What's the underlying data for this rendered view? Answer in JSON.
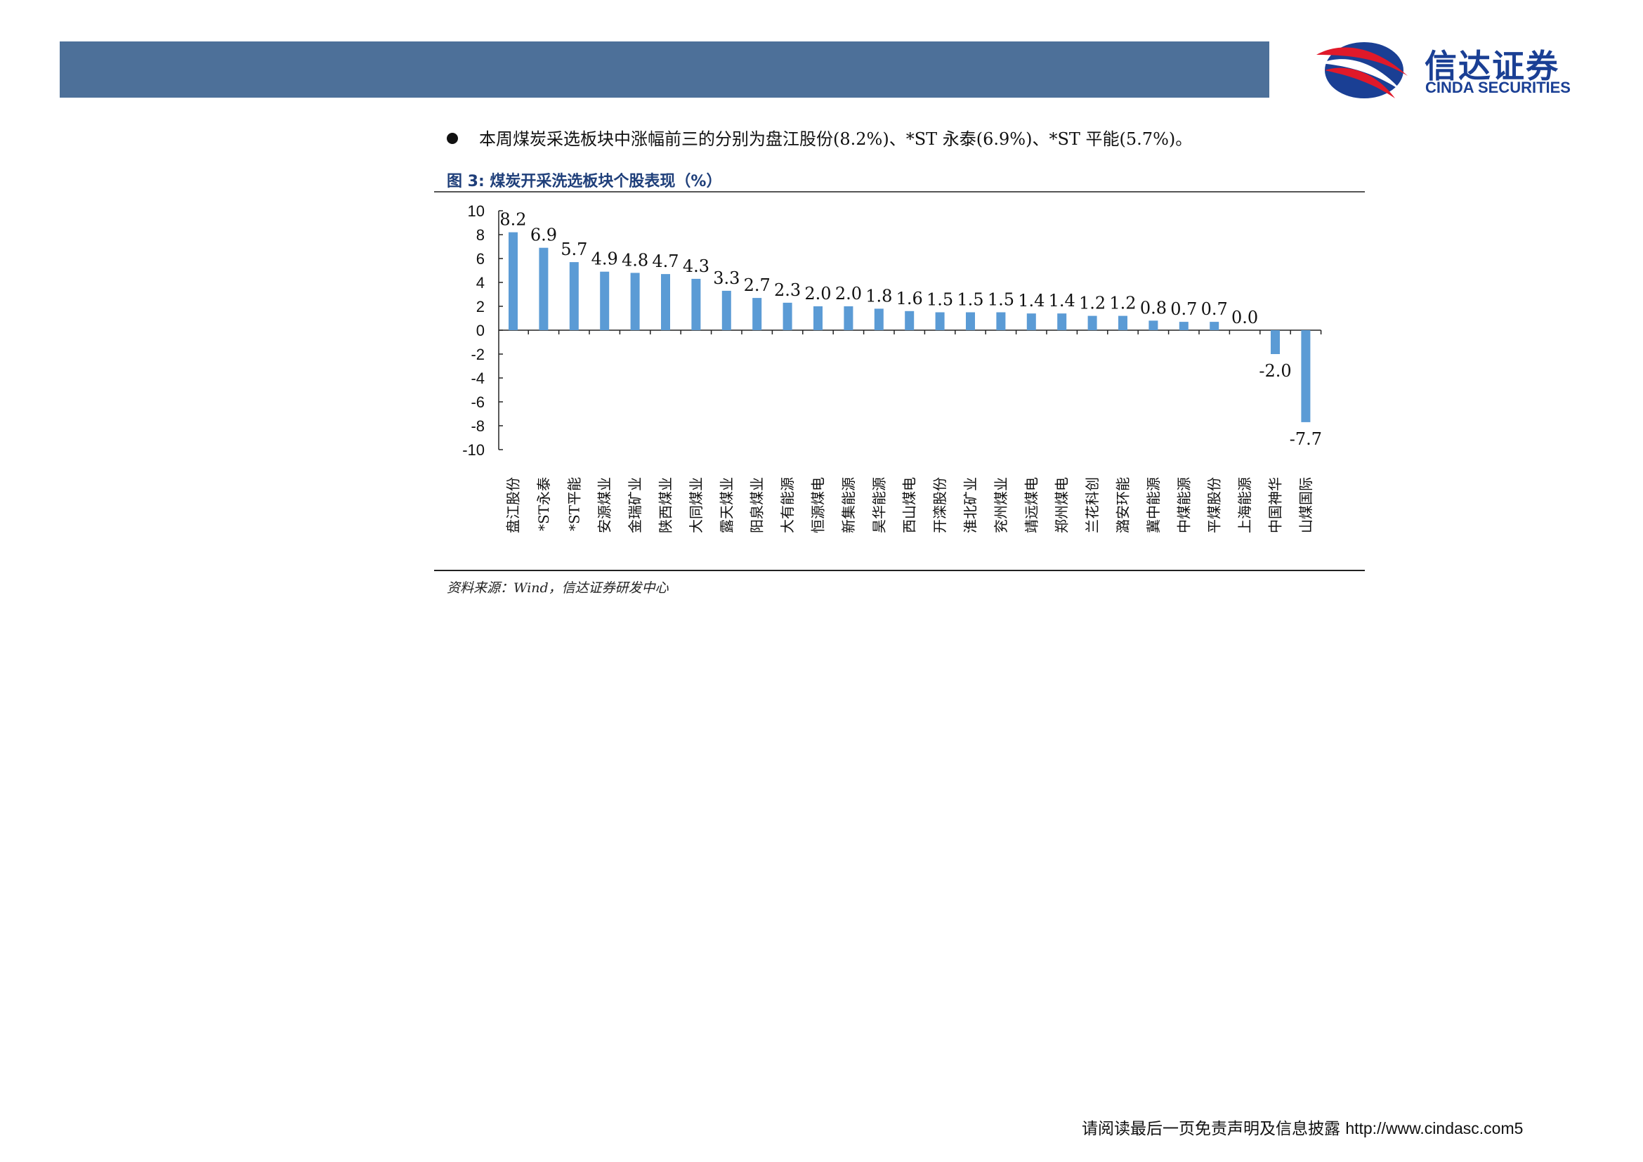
{
  "header": {
    "logo_cn": "信达证券",
    "logo_en": "CINDA SECURITIES"
  },
  "bullet_text": "本周煤炭采选板块中涨幅前三的分别为盘江股份(8.2%)、*ST 永泰(6.9%)、*ST 平能(5.7%)。",
  "figure_title": "图 3:  煤炭开采洗选板块个股表现（%）",
  "source": "资料来源：Wind，信达证券研发中心",
  "footer": {
    "disclaimer": "请阅读最后一页免责声明及信息披露",
    "url": "http://www.cindasc.com",
    "page": "5"
  },
  "colors": {
    "header_bar": "#4d7099",
    "bar": "#5b9bd5",
    "logo_blue": "#1a3f94",
    "logo_red": "#e0192a"
  },
  "chart_data": {
    "type": "bar",
    "categories": [
      "盘江股份",
      "*ST永泰",
      "*ST平能",
      "安源煤业",
      "金瑞矿业",
      "陕西煤业",
      "大同煤业",
      "露天煤业",
      "阳泉煤业",
      "大有能源",
      "恒源煤电",
      "新集能源",
      "昊华能源",
      "西山煤电",
      "开滦股份",
      "淮北矿业",
      "兖州煤业",
      "靖远煤电",
      "郑州煤电",
      "兰花科创",
      "潞安环能",
      "冀中能源",
      "中煤能源",
      "平煤股份",
      "上海能源",
      "中国神华",
      "山煤国际"
    ],
    "values": [
      8.2,
      6.9,
      5.7,
      4.9,
      4.8,
      4.7,
      4.3,
      3.3,
      2.7,
      2.3,
      2.0,
      2.0,
      1.8,
      1.6,
      1.5,
      1.5,
      1.5,
      1.4,
      1.4,
      1.2,
      1.2,
      0.8,
      0.7,
      0.7,
      0.0,
      -2.0,
      -7.7
    ],
    "data_labels": [
      "8.2",
      "6.9",
      "5.7",
      "4.9",
      "4.8",
      "4.7",
      "4.3",
      "3.3",
      "2.7",
      "2.3",
      "2.0",
      "2.0",
      "1.8",
      "1.6",
      "1.5",
      "1.5",
      "1.5",
      "1.4",
      "1.4",
      "1.2",
      "1.2",
      "0.8",
      "0.7",
      "0.7",
      "0.0",
      "-2.0",
      "-7.7"
    ],
    "yticks": [
      "10",
      "8",
      "6",
      "4",
      "2",
      "0",
      "-2",
      "-4",
      "-6",
      "-8",
      "-10"
    ],
    "ylim": [
      -10,
      10
    ],
    "title": "",
    "xlabel": "",
    "ylabel": "",
    "grid": false,
    "legend": "none"
  }
}
